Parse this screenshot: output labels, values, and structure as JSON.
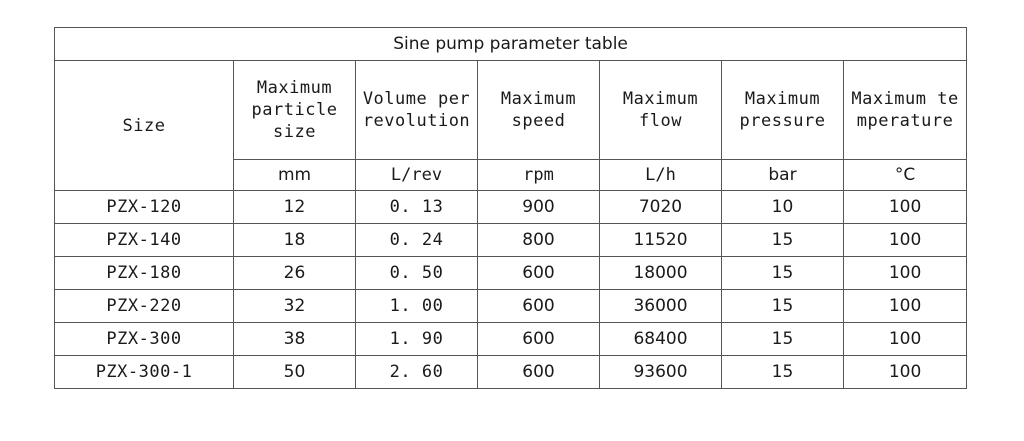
{
  "table": {
    "title": "Sine pump parameter table",
    "headers": [
      "Size",
      "Maximum particle size",
      "Volume per revolution",
      "Maximum speed",
      "Maximum flow",
      "Maximum pressure",
      "Maximum temperature"
    ],
    "units": [
      "mm",
      "L/rev",
      "rpm",
      "L/h",
      "bar",
      "°C"
    ],
    "rows": [
      [
        "PZX-120",
        "12",
        "0. 13",
        "900",
        "7020",
        "10",
        "100"
      ],
      [
        "PZX-140",
        "18",
        "0. 24",
        "800",
        "11520",
        "15",
        "100"
      ],
      [
        "PZX-180",
        "26",
        "0. 50",
        "600",
        "18000",
        "15",
        "100"
      ],
      [
        "PZX-220",
        "32",
        "1. 00",
        "600",
        "36000",
        "15",
        "100"
      ],
      [
        "PZX-300",
        "38",
        "1. 90",
        "600",
        "68400",
        "15",
        "100"
      ],
      [
        "PZX-300-1",
        "50",
        "2. 60",
        "600",
        "93600",
        "15",
        "100"
      ]
    ]
  }
}
